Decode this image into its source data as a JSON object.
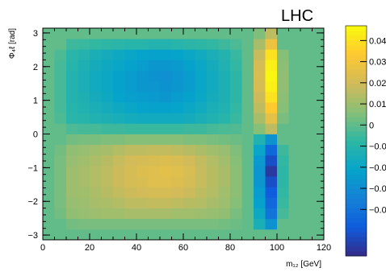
{
  "chart_data": {
    "type": "heatmap",
    "title": "LHC",
    "xlabel": "m₁₂ [GeV]",
    "ylabel": "Φ₄ℓ [rad]",
    "xlim": [
      0,
      120
    ],
    "ylim": [
      -3.14159,
      3.14159
    ],
    "x_ticks": [
      0,
      20,
      40,
      60,
      80,
      100,
      120
    ],
    "y_ticks": [
      -3,
      -2,
      -1,
      0,
      1,
      2,
      3
    ],
    "x_minor_step": 5,
    "y_minor_step": 0.2,
    "z_range": [
      -0.062,
      0.047
    ],
    "colorbar_ticks": [
      0.04,
      0.03,
      0.02,
      0.01,
      0,
      -0.01,
      -0.02,
      -0.03,
      -0.04
    ],
    "colorbar_tick_labels": [
      "0.04",
      "0.03",
      "0.02",
      "0.01",
      "0",
      "−0.0",
      "−0.0",
      "−0.0",
      "−0.0"
    ],
    "x_bin_edges": [
      0,
      5,
      10,
      15,
      20,
      25,
      30,
      35,
      40,
      45,
      50,
      55,
      60,
      65,
      70,
      75,
      80,
      85,
      90,
      95,
      100,
      105,
      110,
      115,
      120
    ],
    "y_bin_edges": [
      -3.14159,
      -2.82743,
      -2.51327,
      -2.19911,
      -1.88496,
      -1.5708,
      -1.25664,
      -0.94248,
      -0.62832,
      -0.31416,
      0,
      0.31416,
      0.62832,
      0.94248,
      1.25664,
      1.5708,
      1.88496,
      2.19911,
      2.51327,
      2.82743,
      3.14159
    ],
    "z": [
      [
        0.0005,
        0.0005,
        0.0005,
        0.0005,
        0.0005,
        0.0005,
        0.0005,
        0.0005,
        0.0005,
        0.0005,
        0.0005,
        0.0005,
        0.0005,
        0.0005,
        0.0005,
        0.0005,
        0.0005,
        0.0005,
        0.0005,
        0.0005,
        0.0005,
        0.0005,
        0.0005,
        0.0005
      ],
      [
        0.0005,
        0.0005,
        0.003,
        0.004,
        0.004,
        0.004,
        0.004,
        0.004,
        0.004,
        0.004,
        0.004,
        0.004,
        0.004,
        0.004,
        0.004,
        0.003,
        0.002,
        0.0005,
        -0.014,
        -0.028,
        0.0005,
        0.0005,
        0.0005,
        0.0005
      ],
      [
        0.0005,
        0.003,
        0.008,
        0.009,
        0.01,
        0.011,
        0.011,
        0.012,
        0.012,
        0.012,
        0.012,
        0.011,
        0.011,
        0.01,
        0.009,
        0.008,
        0.004,
        0.0005,
        -0.018,
        -0.04,
        -0.004,
        0.0005,
        0.0005,
        0.0005
      ],
      [
        0.0005,
        0.004,
        0.009,
        0.01,
        0.012,
        0.013,
        0.014,
        0.016,
        0.016,
        0.017,
        0.017,
        0.016,
        0.015,
        0.014,
        0.012,
        0.01,
        0.006,
        0.0005,
        -0.022,
        -0.044,
        -0.006,
        0.0005,
        0.0005,
        0.0005
      ],
      [
        0.0005,
        0.004,
        0.01,
        0.011,
        0.013,
        0.015,
        0.017,
        0.019,
        0.02,
        0.021,
        0.021,
        0.02,
        0.019,
        0.016,
        0.014,
        0.011,
        0.007,
        0.0005,
        -0.024,
        -0.048,
        -0.007,
        0.0005,
        0.0005,
        0.0005
      ],
      [
        0.0005,
        0.004,
        0.01,
        0.012,
        0.014,
        0.016,
        0.019,
        0.021,
        0.022,
        0.024,
        0.024,
        0.023,
        0.021,
        0.018,
        0.015,
        0.012,
        0.007,
        0.0005,
        -0.026,
        -0.052,
        -0.008,
        0.0005,
        0.0005,
        0.0005
      ],
      [
        0.0005,
        0.004,
        0.01,
        0.012,
        0.014,
        0.016,
        0.019,
        0.021,
        0.023,
        0.024,
        0.025,
        0.024,
        0.022,
        0.018,
        0.015,
        0.012,
        0.007,
        0.0005,
        -0.027,
        -0.058,
        -0.008,
        0.0005,
        0.0005,
        0.0005
      ],
      [
        0.0005,
        0.004,
        0.009,
        0.011,
        0.013,
        0.015,
        0.018,
        0.02,
        0.021,
        0.022,
        0.023,
        0.022,
        0.02,
        0.017,
        0.014,
        0.011,
        0.006,
        0.0005,
        -0.025,
        -0.052,
        -0.007,
        0.0005,
        0.0005,
        0.0005
      ],
      [
        0.0005,
        0.003,
        0.008,
        0.009,
        0.011,
        0.012,
        0.014,
        0.016,
        0.016,
        0.017,
        0.017,
        0.016,
        0.015,
        0.013,
        0.011,
        0.009,
        0.005,
        0.0005,
        -0.02,
        -0.044,
        -0.005,
        0.0005,
        0.0005,
        0.0005
      ],
      [
        0.0005,
        0.0005,
        0.003,
        0.004,
        0.004,
        0.005,
        0.005,
        0.006,
        0.006,
        0.006,
        0.006,
        0.006,
        0.005,
        0.005,
        0.004,
        0.003,
        0.002,
        0.0005,
        -0.012,
        -0.028,
        0.0005,
        0.0005,
        0.0005,
        0.0005
      ],
      [
        0.0005,
        0.0005,
        -0.003,
        -0.004,
        -0.004,
        -0.005,
        -0.005,
        -0.006,
        -0.006,
        -0.006,
        -0.006,
        -0.006,
        -0.005,
        -0.005,
        -0.004,
        -0.003,
        -0.002,
        0.0005,
        0.006,
        0.016,
        0.0005,
        0.0005,
        0.0005,
        0.0005
      ],
      [
        0.0005,
        -0.003,
        -0.009,
        -0.01,
        -0.012,
        -0.013,
        -0.015,
        -0.016,
        -0.017,
        -0.017,
        -0.017,
        -0.017,
        -0.016,
        -0.014,
        -0.012,
        -0.01,
        -0.006,
        0.0005,
        0.012,
        0.026,
        0.004,
        0.0005,
        0.0005,
        0.0005
      ],
      [
        0.0005,
        -0.004,
        -0.01,
        -0.012,
        -0.014,
        -0.016,
        -0.018,
        -0.02,
        -0.021,
        -0.022,
        -0.022,
        -0.021,
        -0.019,
        -0.017,
        -0.014,
        -0.012,
        -0.007,
        0.0005,
        0.016,
        0.034,
        0.006,
        0.0005,
        0.0005,
        0.0005
      ],
      [
        0.0005,
        -0.004,
        -0.011,
        -0.013,
        -0.016,
        -0.018,
        -0.021,
        -0.023,
        -0.024,
        -0.025,
        -0.026,
        -0.024,
        -0.022,
        -0.019,
        -0.016,
        -0.013,
        -0.008,
        0.0005,
        0.019,
        0.04,
        0.007,
        0.0005,
        0.0005,
        0.0005
      ],
      [
        0.0005,
        -0.004,
        -0.011,
        -0.014,
        -0.017,
        -0.019,
        -0.022,
        -0.024,
        -0.026,
        -0.027,
        -0.028,
        -0.026,
        -0.024,
        -0.02,
        -0.017,
        -0.013,
        -0.008,
        0.0005,
        0.021,
        0.044,
        0.008,
        0.0005,
        0.0005,
        0.0005
      ],
      [
        0.0005,
        -0.004,
        -0.011,
        -0.014,
        -0.017,
        -0.019,
        -0.022,
        -0.024,
        -0.026,
        -0.028,
        -0.029,
        -0.027,
        -0.024,
        -0.02,
        -0.017,
        -0.013,
        -0.008,
        0.0005,
        0.022,
        0.046,
        0.008,
        0.0005,
        0.0005,
        0.0005
      ],
      [
        0.0005,
        -0.004,
        -0.01,
        -0.013,
        -0.016,
        -0.018,
        -0.02,
        -0.022,
        -0.024,
        -0.026,
        -0.026,
        -0.025,
        -0.022,
        -0.019,
        -0.016,
        -0.012,
        -0.007,
        0.0005,
        0.021,
        0.044,
        0.007,
        0.0005,
        0.0005,
        0.0005
      ],
      [
        0.0005,
        -0.003,
        -0.009,
        -0.011,
        -0.014,
        -0.016,
        -0.018,
        -0.02,
        -0.021,
        -0.022,
        -0.022,
        -0.021,
        -0.019,
        -0.017,
        -0.014,
        -0.011,
        -0.006,
        0.0005,
        0.018,
        0.04,
        0.006,
        0.0005,
        0.0005,
        0.0005
      ],
      [
        0.0005,
        0.0005,
        -0.005,
        -0.006,
        -0.007,
        -0.008,
        -0.009,
        -0.01,
        -0.01,
        -0.011,
        -0.011,
        -0.01,
        -0.009,
        -0.008,
        -0.007,
        -0.005,
        -0.003,
        0.0005,
        0.012,
        0.028,
        0.0005,
        0.0005,
        0.0005,
        0.0005
      ],
      [
        0.0005,
        0.0005,
        0.0005,
        0.0005,
        0.0005,
        0.0005,
        0.0005,
        0.0005,
        0.0005,
        0.0005,
        0.0005,
        0.0005,
        0.0005,
        0.0005,
        0.0005,
        0.0005,
        0.0005,
        0.0005,
        0.005,
        0.016,
        0.0005,
        0.0005,
        0.0005,
        0.0005
      ]
    ],
    "grid": false,
    "legend": "none",
    "colorbar": "right",
    "colormap": "parula",
    "colormap_stops": [
      "#352a87",
      "#0f5cdd",
      "#1481d6",
      "#06a4ca",
      "#2eb7a4",
      "#87bf77",
      "#d1bb59",
      "#fec832",
      "#f9fb0e"
    ]
  }
}
